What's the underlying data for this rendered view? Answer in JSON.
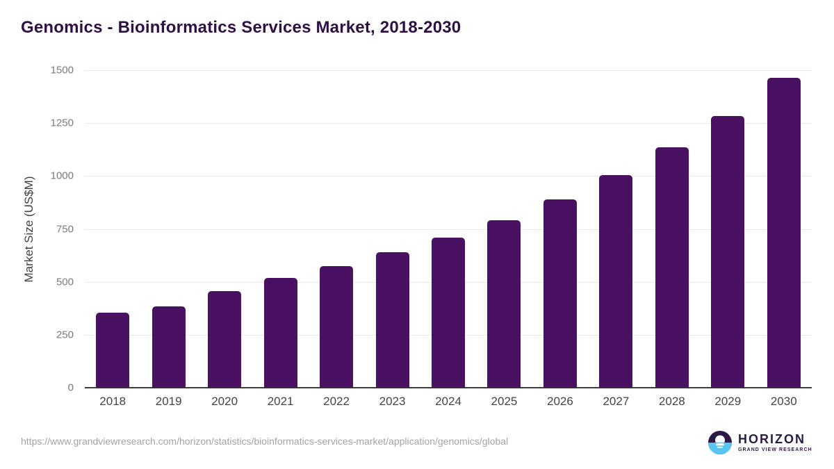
{
  "title": "Genomics - Bioinformatics Services Market, 2018-2030",
  "chart_data": {
    "type": "bar",
    "title": "Genomics - Bioinformatics Services Market, 2018-2030",
    "categories": [
      "2018",
      "2019",
      "2020",
      "2021",
      "2022",
      "2023",
      "2024",
      "2025",
      "2026",
      "2027",
      "2028",
      "2029",
      "2030"
    ],
    "values": [
      355,
      385,
      455,
      520,
      575,
      640,
      710,
      790,
      890,
      1005,
      1135,
      1285,
      1465
    ],
    "xlabel": "",
    "ylabel": "Market Size (US$M)",
    "ylim": [
      0,
      1500
    ],
    "ytick_step": 250,
    "yticks": [
      0,
      250,
      500,
      750,
      1000,
      1250,
      1500
    ],
    "grid": true,
    "legend": "none",
    "bar_color": "#4a1061"
  },
  "colors": {
    "title_text": "#2f1044",
    "bar": "#4a1061",
    "axis_label": "#3f3f3f",
    "y_tick_text": "#7b7b7b",
    "x_tick_text": "#444444",
    "gridline": "#e9e9e9",
    "axis_line": "#3d3d3d",
    "footer_text": "#a3a3a3",
    "logo_purple": "#2b1b44",
    "logo_blue": "#57c6f2"
  },
  "footer": {
    "source_url": "https://www.grandviewresearch.com/horizon/statistics/bioinformatics-services-market/application/genomics/global",
    "logo_name": "HORIZON",
    "logo_subtitle": "GRAND VIEW RESEARCH"
  }
}
